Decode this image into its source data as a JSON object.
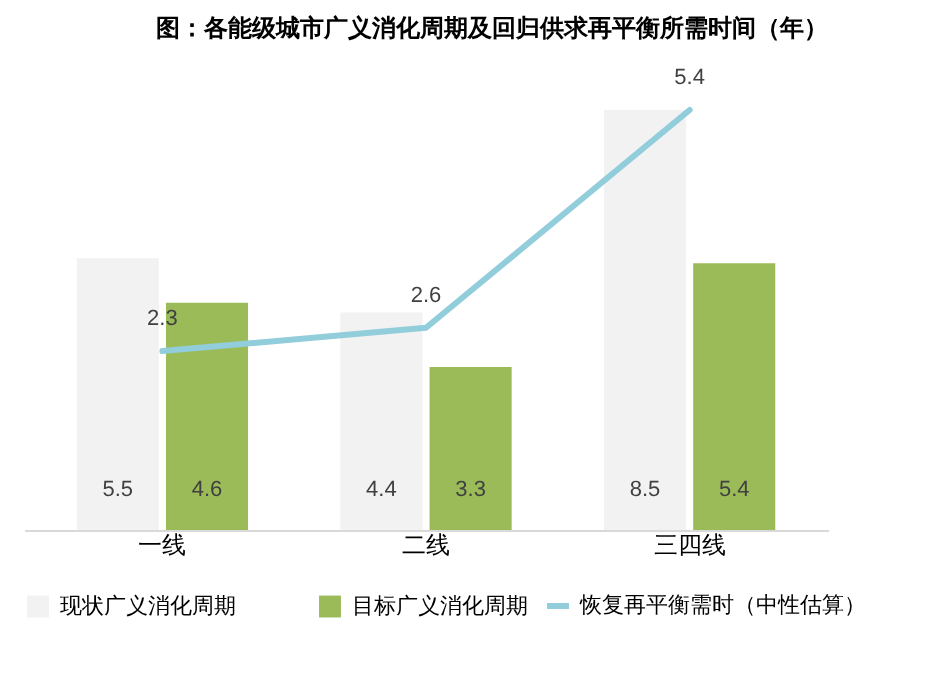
{
  "chart_data": {
    "type": "bar",
    "title": "图：各能级城市广义消化周期及回归供求再平衡所需时间（年）",
    "categories": [
      "一线",
      "二线",
      "三四线"
    ],
    "series": [
      {
        "name": "现状广义消化周期",
        "color": "#f2f2f2",
        "values": [
          5.5,
          4.4,
          8.5
        ]
      },
      {
        "name": "目标广义消化周期",
        "color": "#9bbb59",
        "values": [
          4.6,
          3.3,
          5.4
        ]
      },
      {
        "name": "恢复再平衡需时（中性估算）",
        "type": "line",
        "axis": "y2",
        "color": "#92cddc",
        "values": [
          2.3,
          2.6,
          5.4
        ]
      }
    ],
    "data_labels": true,
    "legend": "bottom",
    "tick_labels": "x",
    "grid": false,
    "marker": "none"
  }
}
